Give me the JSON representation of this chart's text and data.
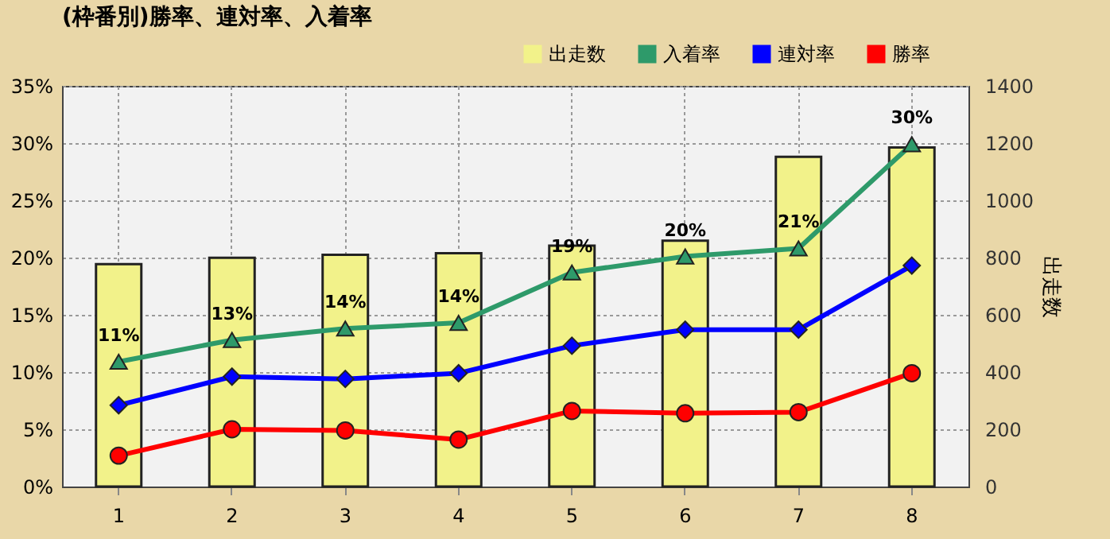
{
  "chart_data": {
    "type": "line",
    "title": "(枠番別)勝率、連対率、入着率",
    "y2label": "出走数",
    "categories": [
      "1",
      "2",
      "3",
      "4",
      "5",
      "6",
      "7",
      "8"
    ],
    "series": [
      {
        "name": "出走数",
        "type": "bar",
        "axis": "y2",
        "color": "#f2f28a",
        "values": [
          777,
          799,
          810,
          815,
          842,
          859,
          1152,
          1185
        ]
      },
      {
        "name": "入着率",
        "marker": "triangle",
        "color": "#2e9a6a",
        "values": [
          10.9,
          12.8,
          13.8,
          14.3,
          18.7,
          20.1,
          20.8,
          29.9
        ],
        "value_labels": [
          "11%",
          "13%",
          "14%",
          "14%",
          "19%",
          "20%",
          "21%",
          "30%"
        ]
      },
      {
        "name": "連対率",
        "marker": "diamond",
        "color": "#0000ff",
        "values": [
          7.1,
          9.6,
          9.4,
          9.9,
          12.3,
          13.7,
          13.7,
          19.3
        ]
      },
      {
        "name": "勝率",
        "marker": "circle",
        "color": "#ff0000",
        "values": [
          2.7,
          5.0,
          4.9,
          4.1,
          6.6,
          6.4,
          6.5,
          9.9
        ]
      }
    ],
    "ylim": [
      0,
      35
    ],
    "yticks": [
      {
        "value": 0,
        "label": "0%"
      },
      {
        "value": 5,
        "label": "5%"
      },
      {
        "value": 10,
        "label": "10%"
      },
      {
        "value": 15,
        "label": "15%"
      },
      {
        "value": 20,
        "label": "20%"
      },
      {
        "value": 25,
        "label": "25%"
      },
      {
        "value": 30,
        "label": "30%"
      },
      {
        "value": 35,
        "label": "35%"
      }
    ],
    "y2lim": [
      0,
      1400
    ],
    "y2ticks": [
      0,
      200,
      400,
      600,
      800,
      1000,
      1200,
      1400
    ],
    "grid": true,
    "legend": "top right",
    "line_style": "solid"
  }
}
